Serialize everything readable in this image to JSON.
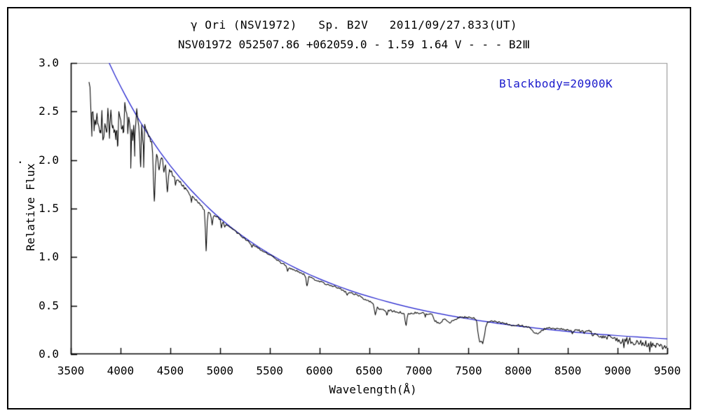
{
  "chart_data": {
    "type": "line",
    "title": "γ Ori (NSV1972)   Sp. B2V   2011/09/27.833(UT)",
    "subtitle": "NSV01972 052507.86 +062059.0 - 1.59 1.64 V - - - B2Ⅲ",
    "xlabel": "Wavelength(Å)",
    "ylabel": "Relative Flux",
    "xlim": [
      3500,
      9500
    ],
    "ylim": [
      0.0,
      3.0
    ],
    "x_ticks": [
      "3500",
      "4000",
      "4500",
      "5000",
      "5500",
      "6000",
      "6500",
      "7000",
      "7500",
      "8000",
      "8500",
      "9000",
      "9500"
    ],
    "y_ticks": [
      "0.0",
      "0.5",
      "1.0",
      "1.5",
      "2.0",
      "2.5",
      "3.0"
    ],
    "grid": false,
    "legend_position": "none",
    "stray_mark": ".",
    "frame": {
      "axis_color": "#000000",
      "top_right_color": "#999999",
      "background": "#ffffff",
      "outer_border_color": "#000000"
    },
    "annotation": {
      "text": "Blackbody=20900K",
      "color": "#1a1acc"
    },
    "series": [
      {
        "name": "observed-spectrum",
        "type": "noisy-line",
        "color": "#000000",
        "x_start": 3683,
        "x_end": 9500,
        "continuum_points": [
          [
            3683,
            2.72
          ],
          [
            3700,
            2.66
          ],
          [
            3730,
            2.62
          ],
          [
            3760,
            2.6
          ],
          [
            3790,
            2.57
          ],
          [
            3820,
            2.56
          ],
          [
            3850,
            2.53
          ],
          [
            3880,
            2.51
          ],
          [
            3910,
            2.54
          ],
          [
            3940,
            2.47
          ],
          [
            3970,
            2.46
          ],
          [
            4000,
            2.54
          ],
          [
            4030,
            2.52
          ],
          [
            4060,
            2.53
          ],
          [
            4090,
            2.49
          ],
          [
            4120,
            2.48
          ],
          [
            4150,
            2.48
          ],
          [
            4180,
            2.43
          ],
          [
            4210,
            2.37
          ],
          [
            4240,
            2.33
          ],
          [
            4270,
            2.27
          ],
          [
            4300,
            2.21
          ],
          [
            4330,
            2.11
          ],
          [
            4360,
            2.06
          ],
          [
            4390,
            2.03
          ],
          [
            4420,
            2.0
          ],
          [
            4450,
            1.95
          ],
          [
            4480,
            1.9
          ],
          [
            4510,
            1.87
          ],
          [
            4540,
            1.83
          ],
          [
            4570,
            1.8
          ],
          [
            4600,
            1.77
          ],
          [
            4640,
            1.72
          ],
          [
            4680,
            1.67
          ],
          [
            4720,
            1.63
          ],
          [
            4760,
            1.58
          ],
          [
            4800,
            1.54
          ],
          [
            4840,
            1.5
          ],
          [
            4880,
            1.46
          ],
          [
            4920,
            1.43
          ],
          [
            4960,
            1.42
          ],
          [
            5000,
            1.39
          ],
          [
            5050,
            1.35
          ],
          [
            5100,
            1.31
          ],
          [
            5150,
            1.27
          ],
          [
            5200,
            1.23
          ],
          [
            5250,
            1.19
          ],
          [
            5300,
            1.15
          ],
          [
            5350,
            1.12
          ],
          [
            5400,
            1.08
          ],
          [
            5450,
            1.05
          ],
          [
            5500,
            1.02
          ],
          [
            5550,
            0.99
          ],
          [
            5600,
            0.95
          ],
          [
            5650,
            0.92
          ],
          [
            5700,
            0.89
          ],
          [
            5750,
            0.87
          ],
          [
            5800,
            0.84
          ],
          [
            5850,
            0.82
          ],
          [
            5900,
            0.8
          ],
          [
            5950,
            0.77
          ],
          [
            6000,
            0.75
          ],
          [
            6050,
            0.73
          ],
          [
            6100,
            0.71
          ],
          [
            6150,
            0.7
          ],
          [
            6200,
            0.68
          ],
          [
            6250,
            0.65
          ],
          [
            6300,
            0.64
          ],
          [
            6350,
            0.62
          ],
          [
            6400,
            0.6
          ],
          [
            6450,
            0.57
          ],
          [
            6500,
            0.55
          ],
          [
            6540,
            0.53
          ],
          [
            6600,
            0.47
          ],
          [
            6650,
            0.46
          ],
          [
            6700,
            0.45
          ],
          [
            6760,
            0.44
          ],
          [
            6820,
            0.43
          ],
          [
            6860,
            0.42
          ],
          [
            6890,
            0.41
          ],
          [
            6930,
            0.42
          ],
          [
            6970,
            0.43
          ],
          [
            7010,
            0.42
          ],
          [
            7060,
            0.42
          ],
          [
            7110,
            0.41
          ],
          [
            7140,
            0.4
          ],
          [
            7165,
            0.34
          ],
          [
            7190,
            0.33
          ],
          [
            7220,
            0.32
          ],
          [
            7245,
            0.36
          ],
          [
            7270,
            0.35
          ],
          [
            7300,
            0.32
          ],
          [
            7330,
            0.34
          ],
          [
            7365,
            0.36
          ],
          [
            7400,
            0.38
          ],
          [
            7450,
            0.38
          ],
          [
            7500,
            0.38
          ],
          [
            7550,
            0.37
          ],
          [
            7580,
            0.36
          ],
          [
            7598,
            0.18
          ],
          [
            7615,
            0.1
          ],
          [
            7630,
            0.14
          ],
          [
            7645,
            0.11
          ],
          [
            7660,
            0.19
          ],
          [
            7675,
            0.28
          ],
          [
            7695,
            0.33
          ],
          [
            7740,
            0.34
          ],
          [
            7790,
            0.33
          ],
          [
            7840,
            0.32
          ],
          [
            7890,
            0.31
          ],
          [
            7940,
            0.3
          ],
          [
            8000,
            0.3
          ],
          [
            8050,
            0.29
          ],
          [
            8100,
            0.28
          ],
          [
            8125,
            0.26
          ],
          [
            8150,
            0.23
          ],
          [
            8180,
            0.21
          ],
          [
            8205,
            0.22
          ],
          [
            8235,
            0.24
          ],
          [
            8265,
            0.26
          ],
          [
            8295,
            0.27
          ],
          [
            8320,
            0.27
          ],
          [
            8370,
            0.265
          ],
          [
            8420,
            0.26
          ],
          [
            8470,
            0.255
          ],
          [
            8520,
            0.25
          ],
          [
            8570,
            0.245
          ],
          [
            8620,
            0.24
          ],
          [
            8670,
            0.238
          ],
          [
            8720,
            0.235
          ],
          [
            8770,
            0.205
          ],
          [
            8820,
            0.175
          ],
          [
            8870,
            0.165
          ],
          [
            8920,
            0.16
          ],
          [
            8970,
            0.155
          ],
          [
            9020,
            0.15
          ],
          [
            9070,
            0.145
          ],
          [
            9120,
            0.14
          ],
          [
            9170,
            0.125
          ],
          [
            9220,
            0.115
          ],
          [
            9270,
            0.11
          ],
          [
            9320,
            0.1
          ],
          [
            9370,
            0.09
          ],
          [
            9420,
            0.085
          ],
          [
            9460,
            0.08
          ],
          [
            9500,
            0.1
          ]
        ],
        "absorption_lines": [
          [
            3712,
            7,
            0.2
          ],
          [
            3734,
            7,
            0.26
          ],
          [
            3752,
            6,
            0.22
          ],
          [
            3771,
            7,
            0.25
          ],
          [
            3798,
            7,
            0.28
          ],
          [
            3820,
            6,
            0.22
          ],
          [
            3835,
            7,
            0.28
          ],
          [
            3860,
            6,
            0.2
          ],
          [
            3889,
            7,
            0.3
          ],
          [
            3920,
            6,
            0.18
          ],
          [
            3933,
            6,
            0.2
          ],
          [
            3955,
            6,
            0.22
          ],
          [
            3970,
            7,
            0.25
          ],
          [
            4009,
            6,
            0.18
          ],
          [
            4026,
            7,
            0.22
          ],
          [
            4070,
            6,
            0.2
          ],
          [
            4102,
            8,
            0.3
          ],
          [
            4121,
            6,
            0.2
          ],
          [
            4144,
            6,
            0.22
          ],
          [
            4200,
            7,
            0.46
          ],
          [
            4230,
            6,
            0.2
          ],
          [
            4340,
            8,
            0.5
          ],
          [
            4388,
            6,
            0.13
          ],
          [
            4437,
            5,
            0.09
          ],
          [
            4471,
            7,
            0.25
          ],
          [
            4553,
            5,
            0.07
          ],
          [
            4713,
            5,
            0.06
          ],
          [
            4861,
            7,
            0.4
          ],
          [
            4922,
            6,
            0.09
          ],
          [
            5015,
            5,
            0.07
          ],
          [
            5048,
            4,
            0.05
          ],
          [
            5320,
            5,
            0.04
          ],
          [
            5680,
            5,
            0.04
          ],
          [
            5876,
            8,
            0.1
          ],
          [
            6280,
            6,
            0.04
          ],
          [
            6563,
            8,
            0.11
          ],
          [
            6678,
            6,
            0.05
          ],
          [
            6870,
            8,
            0.12
          ],
          [
            7065,
            5,
            0.03
          ],
          [
            8545,
            6,
            0.03
          ],
          [
            8665,
            6,
            0.03
          ],
          [
            8750,
            6,
            0.03
          ]
        ],
        "noise_regions": [
          [
            3683,
            4260,
            0.095
          ],
          [
            4260,
            4520,
            0.025
          ],
          [
            4520,
            4900,
            0.016
          ],
          [
            4900,
            6450,
            0.009
          ],
          [
            6450,
            7590,
            0.011
          ],
          [
            7590,
            7700,
            0.018
          ],
          [
            7700,
            8600,
            0.009
          ],
          [
            8600,
            8830,
            0.015
          ],
          [
            8830,
            9500,
            0.033
          ]
        ]
      },
      {
        "name": "blackbody-fit",
        "type": "smooth-line",
        "color": "#1a1acc",
        "temperature_K": 20900,
        "points": [
          [
            3860,
            3.058
          ],
          [
            3880,
            3.013
          ],
          [
            3900,
            2.969
          ],
          [
            3950,
            2.862
          ],
          [
            4000,
            2.76
          ],
          [
            4050,
            2.662
          ],
          [
            4100,
            2.568
          ],
          [
            4150,
            2.478
          ],
          [
            4200,
            2.391
          ],
          [
            4250,
            2.309
          ],
          [
            4300,
            2.229
          ],
          [
            4350,
            2.154
          ],
          [
            4400,
            2.08
          ],
          [
            4450,
            2.011
          ],
          [
            4500,
            1.943
          ],
          [
            4550,
            1.879
          ],
          [
            4600,
            1.817
          ],
          [
            4650,
            1.758
          ],
          [
            4700,
            1.7
          ],
          [
            4750,
            1.646
          ],
          [
            4800,
            1.593
          ],
          [
            4850,
            1.542
          ],
          [
            4900,
            1.493
          ],
          [
            4950,
            1.446
          ],
          [
            5000,
            1.401
          ],
          [
            5100,
            1.316
          ],
          [
            5200,
            1.237
          ],
          [
            5300,
            1.164
          ],
          [
            5400,
            1.096
          ],
          [
            5500,
            1.033
          ],
          [
            5600,
            0.974
          ],
          [
            5700,
            0.919
          ],
          [
            5800,
            0.868
          ],
          [
            5900,
            0.82
          ],
          [
            6000,
            0.776
          ],
          [
            6100,
            0.735
          ],
          [
            6200,
            0.696
          ],
          [
            6300,
            0.659
          ],
          [
            6400,
            0.625
          ],
          [
            6500,
            0.594
          ],
          [
            6600,
            0.564
          ],
          [
            6700,
            0.536
          ],
          [
            6800,
            0.509
          ],
          [
            6900,
            0.484
          ],
          [
            7000,
            0.461
          ],
          [
            7100,
            0.439
          ],
          [
            7200,
            0.419
          ],
          [
            7300,
            0.399
          ],
          [
            7400,
            0.381
          ],
          [
            7500,
            0.364
          ],
          [
            7600,
            0.347
          ],
          [
            7700,
            0.332
          ],
          [
            7800,
            0.317
          ],
          [
            7900,
            0.303
          ],
          [
            8000,
            0.29
          ],
          [
            8100,
            0.278
          ],
          [
            8200,
            0.266
          ],
          [
            8300,
            0.255
          ],
          [
            8400,
            0.244
          ],
          [
            8500,
            0.234
          ],
          [
            8600,
            0.225
          ],
          [
            8700,
            0.216
          ],
          [
            8800,
            0.207
          ],
          [
            8900,
            0.199
          ],
          [
            9000,
            0.191
          ],
          [
            9100,
            0.184
          ],
          [
            9200,
            0.177
          ],
          [
            9300,
            0.17
          ],
          [
            9400,
            0.164
          ],
          [
            9500,
            0.158
          ]
        ]
      }
    ]
  }
}
